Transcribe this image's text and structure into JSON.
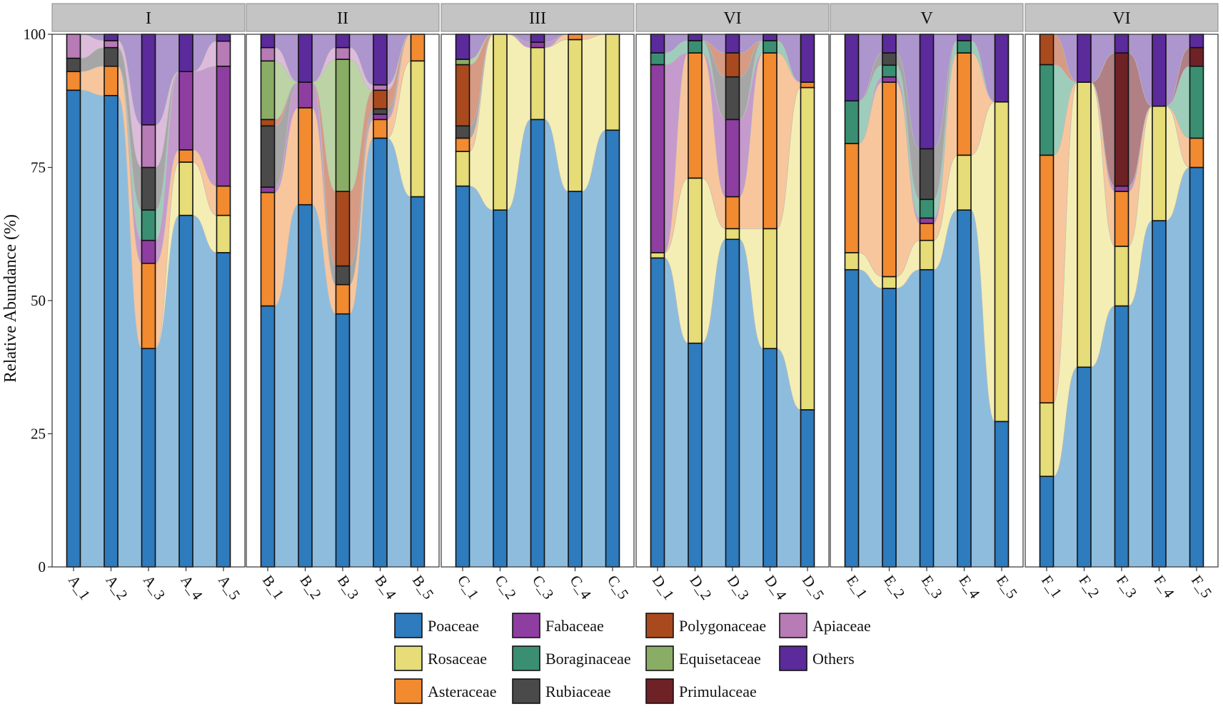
{
  "chart_data": {
    "type": "stacked-bar-alluvial",
    "ylabel": "Relative Abundance (%)",
    "xlabel": "",
    "ylim": [
      0,
      100
    ],
    "yticks": [
      0,
      25,
      50,
      75,
      100
    ],
    "families": [
      "Poaceae",
      "Rosaceae",
      "Asteraceae",
      "Fabaceae",
      "Boraginaceae",
      "Rubiaceae",
      "Polygonaceae",
      "Equisetaceae",
      "Primulaceae",
      "Apiaceae",
      "Others"
    ],
    "legend_order": [
      "Poaceae",
      "Fabaceae",
      "Polygonaceae",
      "Apiaceae",
      "Rosaceae",
      "Boraginaceae",
      "Equisetaceae",
      "Others",
      "Asteraceae",
      "Rubiaceae",
      "Primulaceae"
    ],
    "legend_labels": {
      "Poaceae": "Poaceae",
      "Rosaceae": "Rosaceae",
      "Asteraceae": "Asteraceae",
      "Fabaceae": "Fabaceae",
      "Boraginaceae": "Boraginaceae",
      "Rubiaceae": "Rubiaceae",
      "Polygonaceae": "Polygonaceae",
      "Equisetaceae": "Equisetaceae",
      "Primulaceae": "Primulaceae",
      "Apiaceae": "Apiaceae",
      "Others": "Others"
    },
    "colors": {
      "Poaceae": "#2e7bbd",
      "Rosaceae": "#e6dc78",
      "Asteraceae": "#f28a30",
      "Fabaceae": "#8e3ea0",
      "Boraginaceae": "#3a8f72",
      "Rubiaceae": "#4a4a4a",
      "Polygonaceae": "#a94a1e",
      "Equisetaceae": "#8aad65",
      "Primulaceae": "#6e2226",
      "Apiaceae": "#b77bb6",
      "Others": "#5b2a9b"
    },
    "flow_colors": {
      "Poaceae": "#8ebcdd",
      "Rosaceae": "#f4eeb4",
      "Asteraceae": "#f8c69c",
      "Fabaceae": "#c59acc",
      "Boraginaceae": "#9fcdbb",
      "Rubiaceae": "#a6a6a6",
      "Polygonaceae": "#d79a82",
      "Equisetaceae": "#bcd3a5",
      "Primulaceae": "#b08084",
      "Apiaceae": "#ddbcdb",
      "Others": "#ad95cd"
    },
    "panels": [
      {
        "label": "I",
        "samples": [
          {
            "name": "A_1",
            "values": {
              "Poaceae": 89.5,
              "Asteraceae": 3.5,
              "Rubiaceae": 2.5,
              "Apiaceae": 4.5
            }
          },
          {
            "name": "A_2",
            "values": {
              "Poaceae": 88.5,
              "Asteraceae": 5.5,
              "Rubiaceae": 3.5,
              "Apiaceae": 1.3,
              "Others": 1.2
            }
          },
          {
            "name": "A_3",
            "values": {
              "Poaceae": 41,
              "Asteraceae": 16,
              "Fabaceae": 4.3,
              "Boraginaceae": 5.7,
              "Rubiaceae": 8,
              "Apiaceae": 8,
              "Others": 17
            }
          },
          {
            "name": "A_4",
            "values": {
              "Poaceae": 66,
              "Rosaceae": 10,
              "Asteraceae": 2.3,
              "Fabaceae": 14.7,
              "Others": 7
            }
          },
          {
            "name": "A_5",
            "values": {
              "Poaceae": 59,
              "Rosaceae": 7,
              "Asteraceae": 5.5,
              "Fabaceae": 22.5,
              "Apiaceae": 4.7,
              "Others": 1.3
            }
          }
        ]
      },
      {
        "label": "II",
        "samples": [
          {
            "name": "B_1",
            "values": {
              "Poaceae": 49,
              "Asteraceae": 21.3,
              "Fabaceae": 1,
              "Rubiaceae": 11.5,
              "Polygonaceae": 1.2,
              "Equisetaceae": 11,
              "Apiaceae": 2.5,
              "Others": 2.5
            }
          },
          {
            "name": "B_2",
            "values": {
              "Poaceae": 68,
              "Asteraceae": 18.2,
              "Fabaceae": 4.8,
              "Others": 9
            }
          },
          {
            "name": "B_3",
            "values": {
              "Poaceae": 47.5,
              "Asteraceae": 5.5,
              "Rubiaceae": 3.5,
              "Polygonaceae": 14,
              "Equisetaceae": 24.8,
              "Apiaceae": 2.2,
              "Others": 2.5
            }
          },
          {
            "name": "B_4",
            "values": {
              "Poaceae": 80.5,
              "Asteraceae": 3.5,
              "Fabaceae": 1,
              "Rubiaceae": 1,
              "Polygonaceae": 3.5,
              "Apiaceae": 1,
              "Others": 9.5
            }
          },
          {
            "name": "B_5",
            "values": {
              "Poaceae": 69.5,
              "Rosaceae": 25.5,
              "Asteraceae": 5
            }
          }
        ]
      },
      {
        "label": "III",
        "samples": [
          {
            "name": "C_1",
            "values": {
              "Poaceae": 71.5,
              "Rosaceae": 6.5,
              "Asteraceae": 2.5,
              "Rubiaceae": 2.3,
              "Polygonaceae": 11.5,
              "Equisetaceae": 1,
              "Others": 4.7
            }
          },
          {
            "name": "C_2",
            "values": {
              "Poaceae": 67,
              "Rosaceae": 33
            }
          },
          {
            "name": "C_3",
            "values": {
              "Poaceae": 84,
              "Rosaceae": 13.5,
              "Fabaceae": 1,
              "Others": 1.5
            }
          },
          {
            "name": "C_4",
            "values": {
              "Poaceae": 70.5,
              "Rosaceae": 28.5,
              "Asteraceae": 1
            }
          },
          {
            "name": "C_5",
            "values": {
              "Poaceae": 82,
              "Rosaceae": 18
            }
          }
        ]
      },
      {
        "label": "VI",
        "samples": [
          {
            "name": "D_1",
            "values": {
              "Poaceae": 58,
              "Rosaceae": 1,
              "Fabaceae": 35.3,
              "Boraginaceae": 2.2,
              "Others": 3.5
            }
          },
          {
            "name": "D_2",
            "values": {
              "Poaceae": 42,
              "Rosaceae": 31,
              "Asteraceae": 23.5,
              "Boraginaceae": 2.3,
              "Others": 1.2
            }
          },
          {
            "name": "D_3",
            "values": {
              "Poaceae": 61.5,
              "Rosaceae": 2,
              "Asteraceae": 6,
              "Fabaceae": 14.5,
              "Rubiaceae": 8,
              "Polygonaceae": 4.5,
              "Others": 3.5
            }
          },
          {
            "name": "D_4",
            "values": {
              "Poaceae": 41,
              "Rosaceae": 22.5,
              "Asteraceae": 33,
              "Boraginaceae": 2.3,
              "Others": 1.2
            }
          },
          {
            "name": "D_5",
            "values": {
              "Poaceae": 29.5,
              "Rosaceae": 60.5,
              "Asteraceae": 1,
              "Others": 9
            }
          }
        ]
      },
      {
        "label": "V",
        "samples": [
          {
            "name": "E_1",
            "values": {
              "Poaceae": 55.8,
              "Rosaceae": 3.2,
              "Asteraceae": 20.5,
              "Boraginaceae": 8,
              "Others": 12.5
            }
          },
          {
            "name": "E_2",
            "values": {
              "Poaceae": 52.3,
              "Rosaceae": 2.2,
              "Asteraceae": 36.5,
              "Fabaceae": 1,
              "Boraginaceae": 2.2,
              "Rubiaceae": 2.3,
              "Others": 3.5
            }
          },
          {
            "name": "E_3",
            "values": {
              "Poaceae": 55.8,
              "Rosaceae": 5.5,
              "Asteraceae": 3.2,
              "Fabaceae": 1,
              "Boraginaceae": 3.5,
              "Rubiaceae": 9.5,
              "Others": 21.5
            }
          },
          {
            "name": "E_4",
            "values": {
              "Poaceae": 67,
              "Rosaceae": 10.3,
              "Asteraceae": 19.2,
              "Boraginaceae": 2.3,
              "Others": 1.2
            }
          },
          {
            "name": "E_5",
            "values": {
              "Poaceae": 27.3,
              "Rosaceae": 60,
              "Others": 12.7
            }
          }
        ]
      },
      {
        "label": "VI",
        "samples": [
          {
            "name": "F_1",
            "values": {
              "Poaceae": 17,
              "Rosaceae": 13.8,
              "Asteraceae": 46.5,
              "Boraginaceae": 17,
              "Polygonaceae": 5.7
            }
          },
          {
            "name": "F_2",
            "values": {
              "Poaceae": 37.5,
              "Rosaceae": 53.5,
              "Others": 9
            }
          },
          {
            "name": "F_3",
            "values": {
              "Poaceae": 49,
              "Rosaceae": 11.2,
              "Asteraceae": 10.3,
              "Fabaceae": 1,
              "Primulaceae": 25,
              "Others": 3.5
            }
          },
          {
            "name": "F_4",
            "values": {
              "Poaceae": 65,
              "Rosaceae": 21.5,
              "Others": 13.5
            }
          },
          {
            "name": "F_5",
            "values": {
              "Poaceae": 75,
              "Asteraceae": 5.5,
              "Boraginaceae": 13.5,
              "Primulaceae": 3.5,
              "Others": 2.5
            }
          }
        ]
      }
    ]
  }
}
